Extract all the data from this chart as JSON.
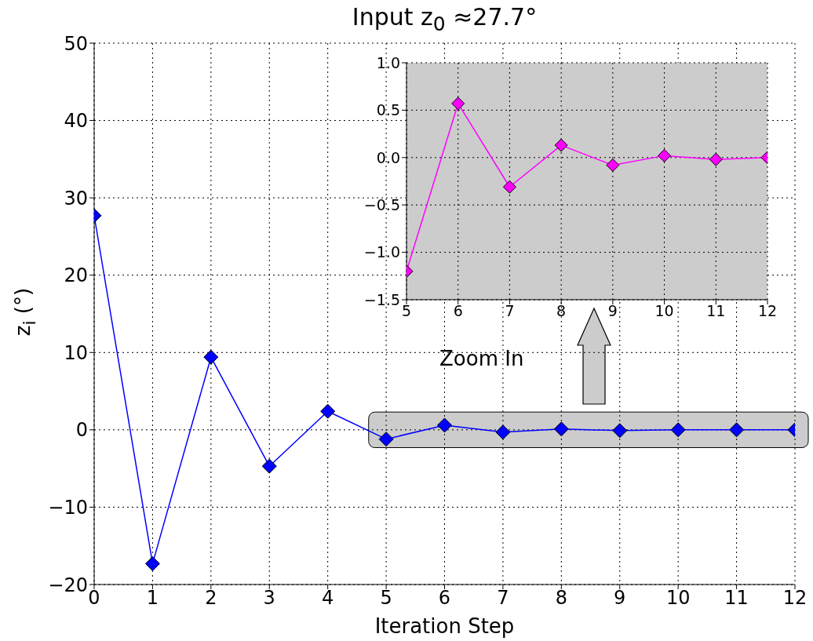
{
  "chart_data": [
    {
      "type": "line",
      "title": "Input z$_{0}$ ≈27.7°",
      "xlabel": "Iteration Step",
      "ylabel": "z$_{i}$ (°)",
      "x": [
        0,
        1,
        2,
        3,
        4,
        5,
        6,
        7,
        8,
        9,
        10,
        11,
        12
      ],
      "series": [
        {
          "color": "#0000ff",
          "values": [
            27.7,
            -17.3,
            9.4,
            -4.7,
            2.4,
            -1.2,
            0.6,
            -0.3,
            0.1,
            -0.1,
            0.0,
            0.0,
            0.0
          ]
        }
      ],
      "xlim": [
        0,
        12
      ],
      "xticks": [
        0,
        1,
        2,
        3,
        4,
        5,
        6,
        7,
        8,
        9,
        10,
        11,
        12
      ],
      "ylim": [
        -20,
        50
      ],
      "yticks": [
        -20,
        -10,
        0,
        10,
        20,
        30,
        40,
        50
      ],
      "grid": true,
      "legend": false,
      "marker": "diamond",
      "annotations": [
        "Zoom In"
      ]
    },
    {
      "type": "line",
      "x": [
        5,
        6,
        7,
        8,
        9,
        10,
        11,
        12
      ],
      "series": [
        {
          "color": "#ff00ff",
          "values": [
            -1.2,
            0.57,
            -0.31,
            0.13,
            -0.08,
            0.02,
            -0.02,
            0.0
          ]
        }
      ],
      "xlim": [
        5,
        12
      ],
      "xticks": [
        5,
        6,
        7,
        8,
        9,
        10,
        11,
        12
      ],
      "ylim": [
        -1.5,
        1
      ],
      "yticks": [
        {
          "value": -1.5,
          "label": "−1.5"
        },
        {
          "value": -1,
          "label": "−1.0"
        },
        {
          "value": -0.5,
          "label": "−0.5"
        },
        {
          "value": 0,
          "label": "0.0"
        },
        {
          "value": 0.5,
          "label": "0.5"
        },
        {
          "value": 1,
          "label": "1.0"
        }
      ],
      "grid": true,
      "legend": false,
      "marker": "diamond"
    }
  ]
}
